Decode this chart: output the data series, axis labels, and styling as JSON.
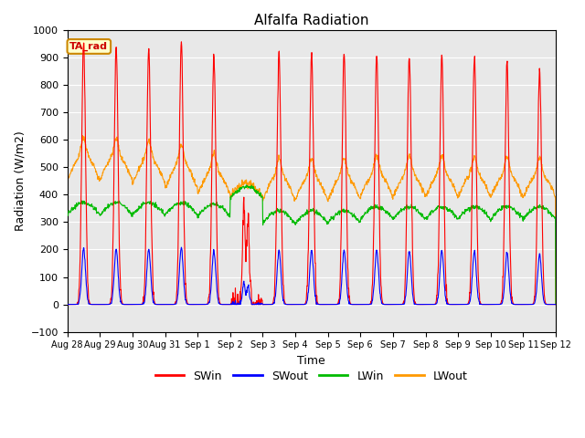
{
  "title": "Alfalfa Radiation",
  "xlabel": "Time",
  "ylabel": "Radiation (W/m2)",
  "ylim": [
    -100,
    1000
  ],
  "tick_labels": [
    "Aug 28",
    "Aug 29",
    "Aug 30",
    "Aug 31",
    "Sep 1",
    "Sep 2",
    "Sep 3",
    "Sep 4",
    "Sep 5",
    "Sep 6",
    "Sep 7",
    "Sep 8",
    "Sep 9",
    "Sep 10",
    "Sep 11",
    "Sep 12"
  ],
  "legend_labels": [
    "SWin",
    "SWout",
    "LWin",
    "LWout"
  ],
  "legend_colors": [
    "#ff0000",
    "#0000ff",
    "#00bb00",
    "#ff9900"
  ],
  "annotation_text": "TA_rad",
  "annotation_bg": "#ffffcc",
  "annotation_border": "#cc8800",
  "bg_color": "#e8e8e8",
  "grid_color": "#ffffff",
  "SWin_color": "#ff0000",
  "SWout_color": "#0000ff",
  "LWin_color": "#00bb00",
  "LWout_color": "#ff9900",
  "line_width": 0.8
}
